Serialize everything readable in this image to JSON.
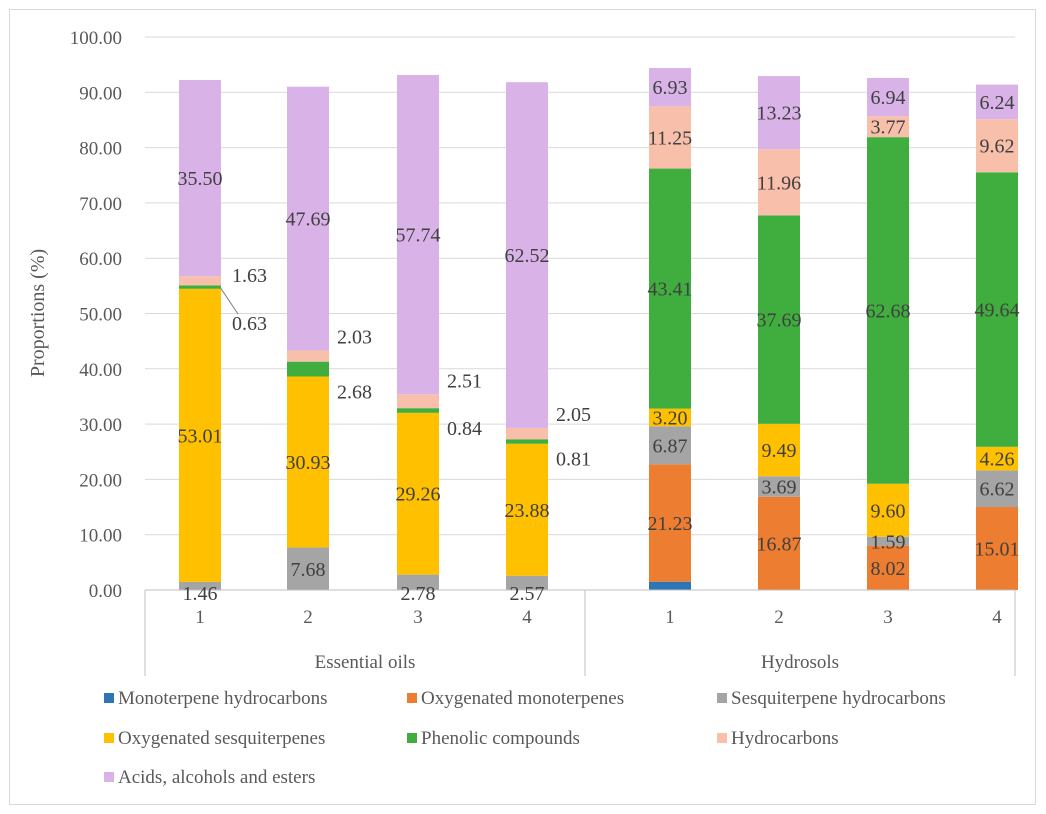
{
  "chart_data": {
    "type": "bar",
    "stacked": true,
    "ylabel": "Proportions (%)",
    "ylim": [
      0,
      100
    ],
    "yticks": [
      "0.00",
      "10.00",
      "20.00",
      "30.00",
      "40.00",
      "50.00",
      "60.00",
      "70.00",
      "80.00",
      "90.00",
      "100.00"
    ],
    "grid": true,
    "legend_position": "bottom",
    "groups": [
      {
        "name": "Essential oils",
        "categories": [
          "1",
          "2",
          "3",
          "4"
        ]
      },
      {
        "name": "Hydrosols",
        "categories": [
          "1",
          "2",
          "3",
          "4"
        ]
      }
    ],
    "series": [
      {
        "name": "Monoterpene hydrocarbons",
        "color": "#2e75b6",
        "values": [
          0,
          0,
          0,
          0,
          1.5,
          0,
          0,
          0
        ],
        "labels": [
          "",
          "",
          "",
          "",
          "",
          "",
          "",
          ""
        ]
      },
      {
        "name": "Oxygenated monoterpenes",
        "color": "#ed7d31",
        "values": [
          0,
          0,
          0,
          0,
          21.23,
          16.87,
          8.02,
          15.01
        ],
        "labels": [
          "",
          "",
          "",
          "",
          "21.23",
          "16.87",
          "8.02",
          "15.01"
        ]
      },
      {
        "name": "Sesquiterpene hydrocarbons",
        "color": "#a5a5a5",
        "values": [
          1.46,
          7.68,
          2.78,
          2.57,
          6.87,
          3.69,
          1.59,
          6.62
        ],
        "labels": [
          "1.46",
          "7.68",
          "2.78",
          "2.57",
          "6.87",
          "3.69",
          "1.59",
          "6.62"
        ]
      },
      {
        "name": "Oxygenated sesquiterpenes",
        "color": "#ffc000",
        "values": [
          53.01,
          30.93,
          29.26,
          23.88,
          3.2,
          9.49,
          9.6,
          4.26
        ],
        "labels": [
          "53.01",
          "30.93",
          "29.26",
          "23.88",
          "3.20",
          "9.49",
          "9.60",
          "4.26"
        ]
      },
      {
        "name": "Phenolic compounds",
        "color": "#3fae3f",
        "values": [
          0.63,
          2.68,
          0.84,
          0.81,
          43.41,
          37.69,
          62.68,
          49.64
        ],
        "labels": [
          "0.63",
          "2.68",
          "0.84",
          "0.81",
          "43.41",
          "37.69",
          "62.68",
          "49.64"
        ]
      },
      {
        "name": "Hydrocarbons",
        "color": "#f8c0aa",
        "values": [
          1.63,
          2.03,
          2.51,
          2.05,
          11.25,
          11.96,
          3.77,
          9.62
        ],
        "labels": [
          "1.63",
          "2.03",
          "2.51",
          "2.05",
          "11.25",
          "11.96",
          "3.77",
          "9.62"
        ]
      },
      {
        "name": "Acids, alcohols and esters",
        "color": "#d9b3e8",
        "values": [
          35.5,
          47.69,
          57.74,
          62.52,
          6.93,
          13.23,
          6.94,
          6.24
        ],
        "labels": [
          "35.50",
          "47.69",
          "57.74",
          "62.52",
          "6.93",
          "13.23",
          "6.94",
          "6.24"
        ]
      }
    ]
  }
}
